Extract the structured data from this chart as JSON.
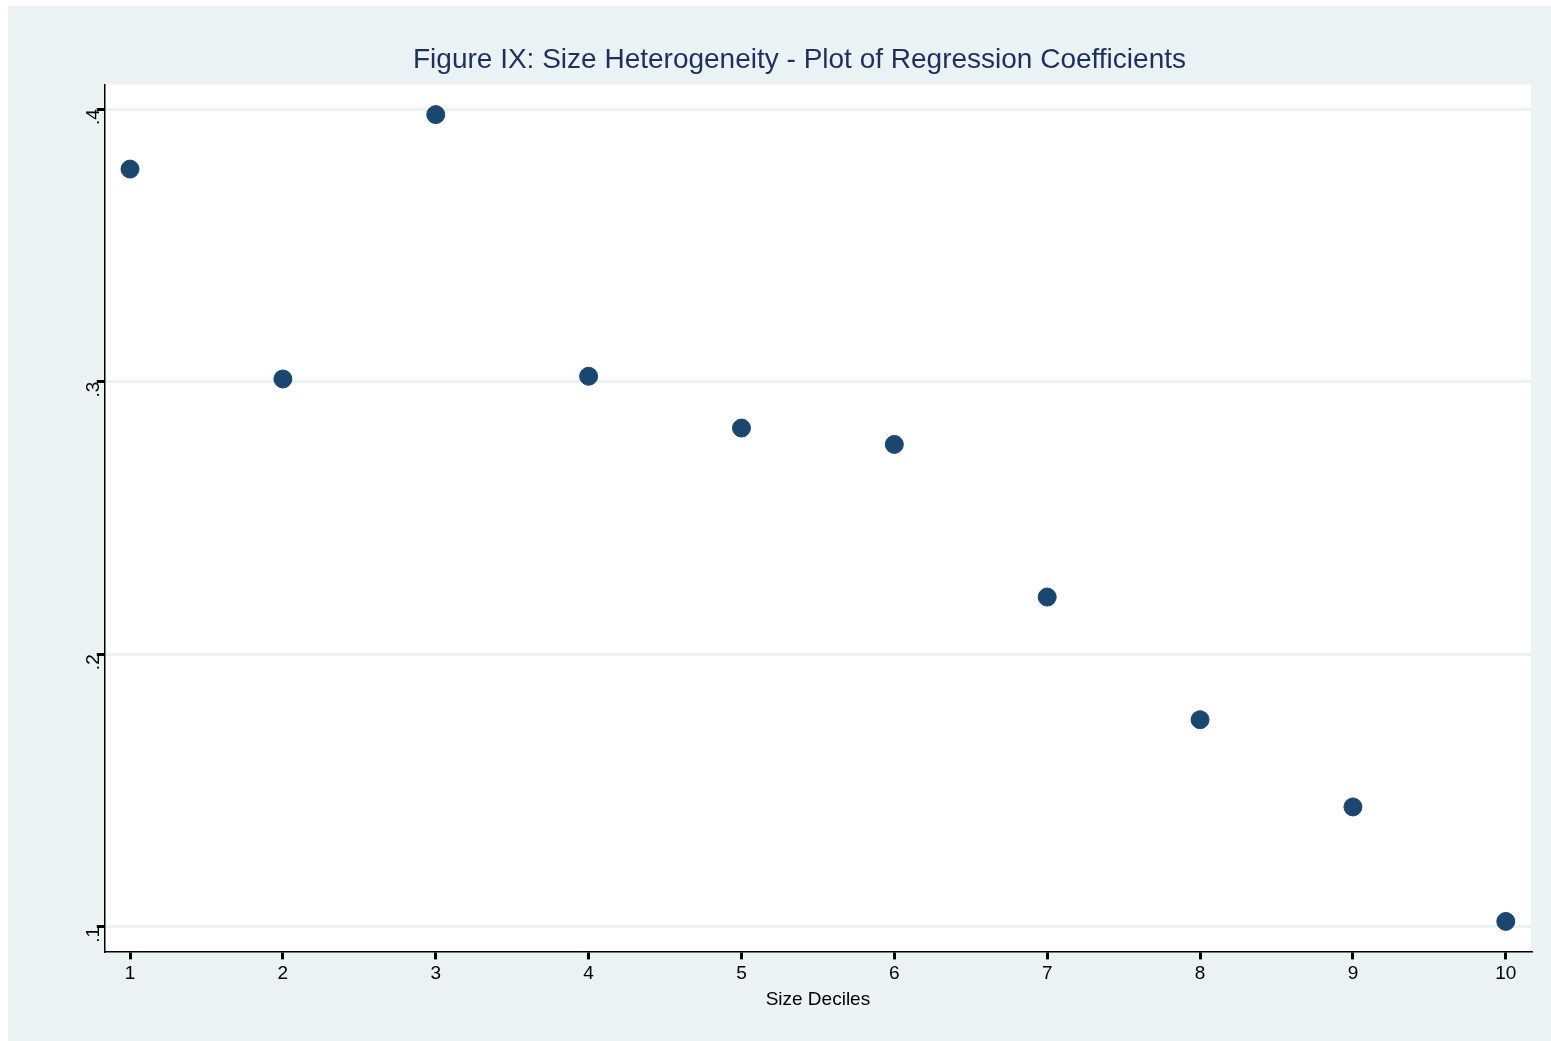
{
  "chart_data": {
    "type": "scatter",
    "title": "Figure IX: Size Heterogeneity - Plot of Regression Coefficients",
    "xlabel": "Size Deciles",
    "x": [
      1,
      2,
      3,
      4,
      5,
      6,
      7,
      8,
      9,
      10
    ],
    "series": [
      {
        "color": "#1a476f",
        "values": [
          0.378,
          0.301,
          0.398,
          0.302,
          0.283,
          0.277,
          0.221,
          0.176,
          0.144,
          0.102
        ]
      }
    ],
    "xlim": [
      0.835,
      10.165
    ],
    "xticks": [
      1,
      2,
      3,
      4,
      5,
      6,
      7,
      8,
      9,
      10
    ],
    "ylim": [
      0.091,
      0.409
    ],
    "yticks": [
      {
        "value": 0.1,
        "label": ".1"
      },
      {
        "value": 0.2,
        "label": ".2"
      },
      {
        "value": 0.3,
        "label": ".3"
      },
      {
        "value": 0.4,
        "label": ".4"
      }
    ],
    "grid": "y",
    "legend": false,
    "marker": "circle"
  }
}
